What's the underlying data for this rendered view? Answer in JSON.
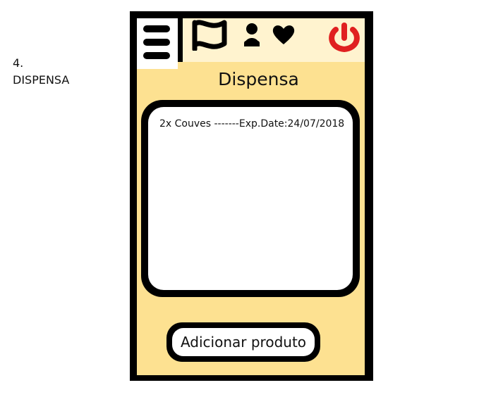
{
  "caption": {
    "number": "4.",
    "screen_name": "DISPENSA"
  },
  "header": {
    "icons": [
      "menu-icon",
      "flag-icon",
      "person-icon",
      "heart-icon",
      "power-icon"
    ],
    "power_color": "#e02020"
  },
  "page": {
    "title": "Dispensa"
  },
  "pantry": {
    "items": [
      {
        "text": "2x Couves -------Exp.Date:24/07/2018"
      }
    ]
  },
  "actions": {
    "add_label": "Adicionar produto"
  },
  "colors": {
    "frame": "#000000",
    "header_bg": "#fff3cf",
    "main_bg": "#fde191",
    "card_bg": "#ffffff"
  }
}
